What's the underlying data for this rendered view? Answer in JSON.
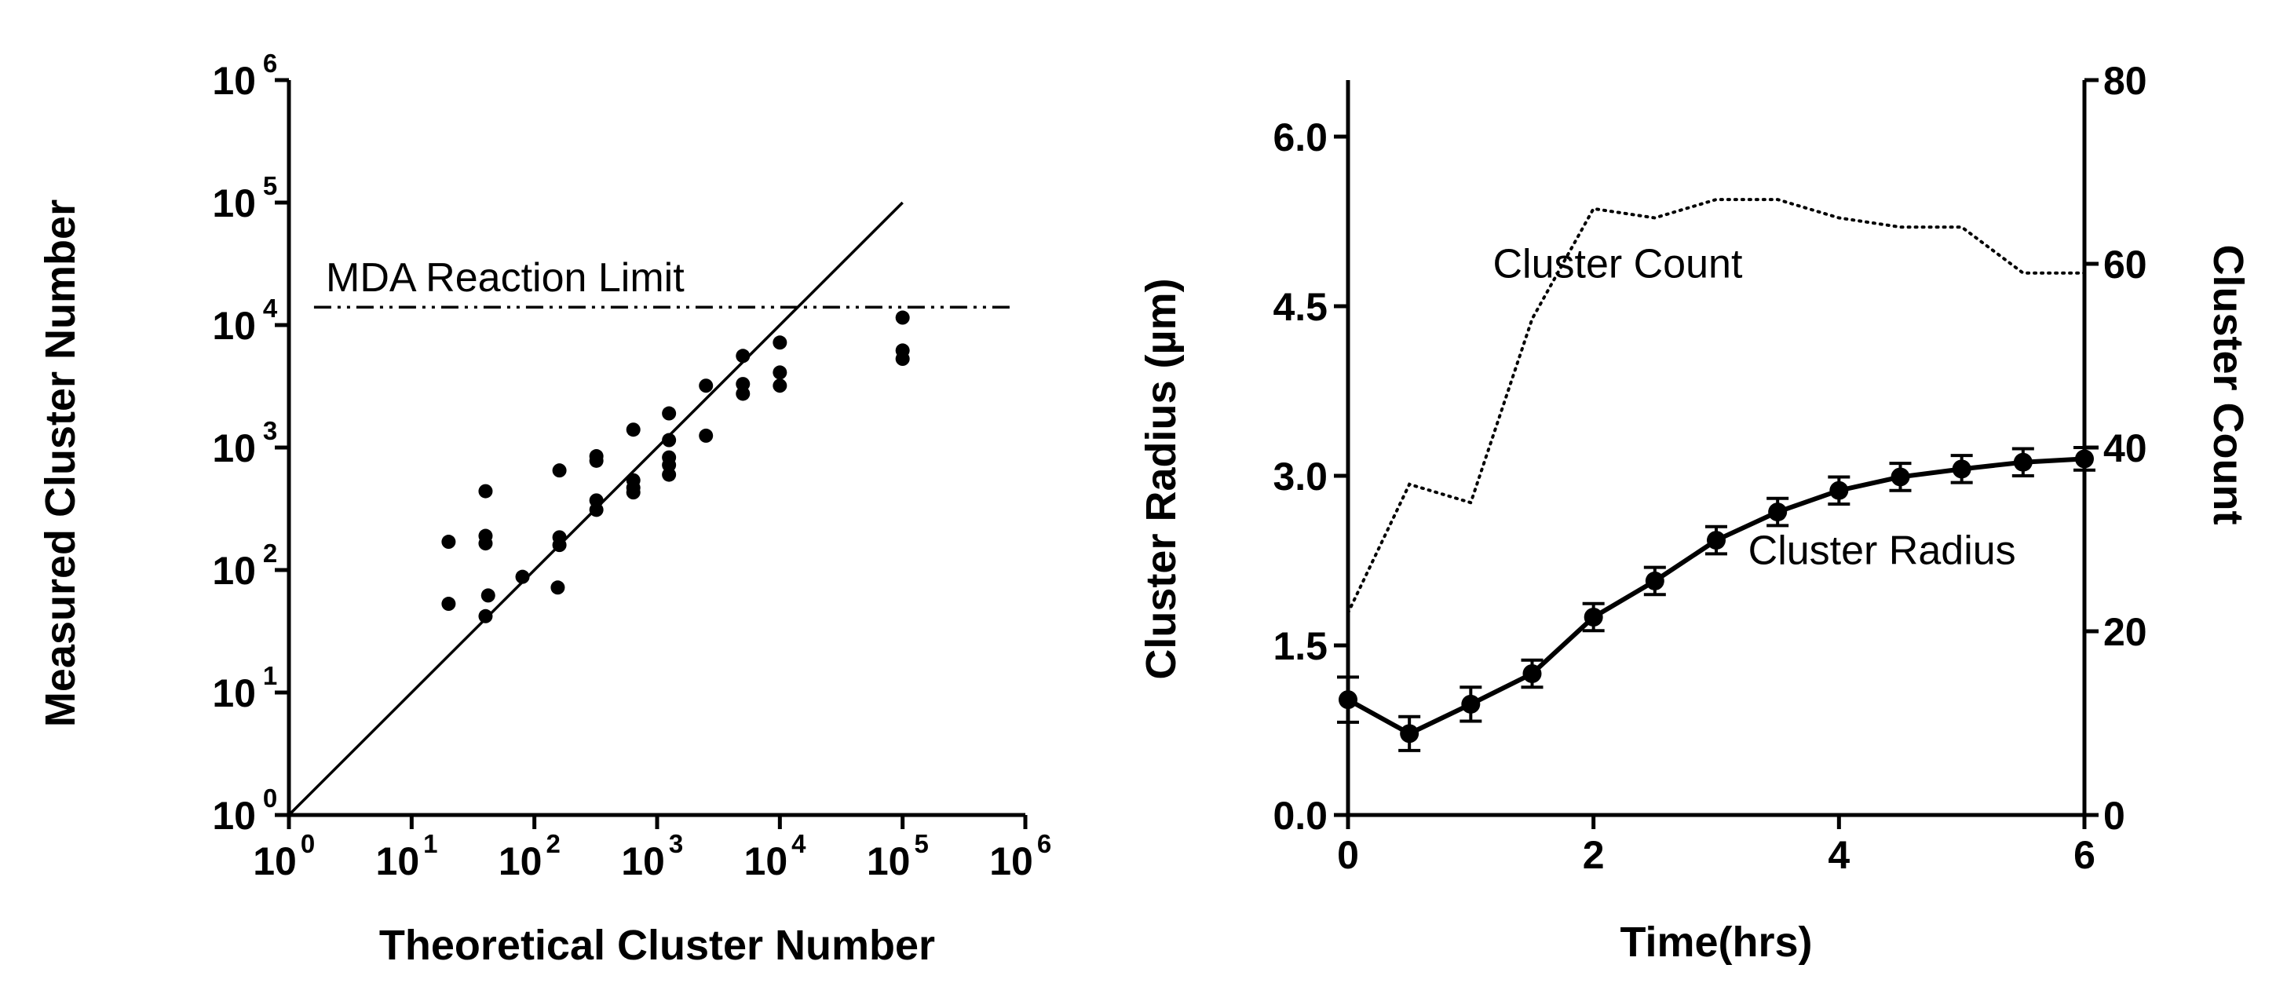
{
  "chart_data": [
    {
      "type": "scatter",
      "title": "",
      "xlabel": "Theoretical Cluster Number",
      "ylabel": "Measured Cluster Number",
      "xscale": "log",
      "yscale": "log",
      "xlim": [
        1,
        1000000
      ],
      "ylim": [
        1,
        1000000
      ],
      "x_ticks": [
        {
          "base": "10",
          "exp": "0"
        },
        {
          "base": "10",
          "exp": "1"
        },
        {
          "base": "10",
          "exp": "2"
        },
        {
          "base": "10",
          "exp": "3"
        },
        {
          "base": "10",
          "exp": "4"
        },
        {
          "base": "10",
          "exp": "5"
        },
        {
          "base": "10",
          "exp": "6"
        }
      ],
      "y_ticks": [
        {
          "base": "10",
          "exp": "0"
        },
        {
          "base": "10",
          "exp": "1"
        },
        {
          "base": "10",
          "exp": "2"
        },
        {
          "base": "10",
          "exp": "3"
        },
        {
          "base": "10",
          "exp": "4"
        },
        {
          "base": "10",
          "exp": "5"
        },
        {
          "base": "10",
          "exp": "6"
        }
      ],
      "points": [
        {
          "x": 20,
          "y": 170
        },
        {
          "x": 20,
          "y": 53
        },
        {
          "x": 40,
          "y": 440
        },
        {
          "x": 40,
          "y": 190
        },
        {
          "x": 40,
          "y": 165
        },
        {
          "x": 42,
          "y": 62
        },
        {
          "x": 40,
          "y": 42
        },
        {
          "x": 80,
          "y": 88
        },
        {
          "x": 160,
          "y": 650
        },
        {
          "x": 160,
          "y": 185
        },
        {
          "x": 160,
          "y": 160
        },
        {
          "x": 155,
          "y": 72
        },
        {
          "x": 320,
          "y": 850
        },
        {
          "x": 320,
          "y": 780
        },
        {
          "x": 320,
          "y": 370
        },
        {
          "x": 320,
          "y": 310
        },
        {
          "x": 640,
          "y": 1400
        },
        {
          "x": 640,
          "y": 540
        },
        {
          "x": 640,
          "y": 470
        },
        {
          "x": 640,
          "y": 430
        },
        {
          "x": 1250,
          "y": 1900
        },
        {
          "x": 1250,
          "y": 1150
        },
        {
          "x": 1250,
          "y": 830
        },
        {
          "x": 1250,
          "y": 720
        },
        {
          "x": 1250,
          "y": 600
        },
        {
          "x": 2500,
          "y": 3200
        },
        {
          "x": 2500,
          "y": 1250
        },
        {
          "x": 5000,
          "y": 5600
        },
        {
          "x": 5000,
          "y": 3300
        },
        {
          "x": 5000,
          "y": 2750
        },
        {
          "x": 10000,
          "y": 7200
        },
        {
          "x": 10000,
          "y": 4100
        },
        {
          "x": 10000,
          "y": 3200
        },
        {
          "x": 100000,
          "y": 11500
        },
        {
          "x": 100000,
          "y": 6200
        },
        {
          "x": 100000,
          "y": 5300
        }
      ],
      "reference_line": {
        "style": "solid",
        "from": [
          1,
          1
        ],
        "to": [
          100000,
          100000
        ]
      },
      "limit_line": {
        "style": "dash-dot-dot",
        "y": 14000,
        "label": "MDA Reaction Limit"
      },
      "grid": false,
      "legend": "none"
    },
    {
      "type": "line",
      "title": "",
      "xlabel": "Time(hrs)",
      "ylabel": "Cluster Radius (µm)",
      "y2label": "Cluster Count",
      "xlim": [
        0,
        6
      ],
      "ylim": [
        0,
        6.5
      ],
      "y2lim": [
        0,
        80
      ],
      "x_ticks": [
        "0",
        "2",
        "4",
        "6"
      ],
      "y_ticks": [
        "0.0",
        "1.5",
        "3.0",
        "4.5",
        "6.0"
      ],
      "y2_ticks": [
        "0",
        "20",
        "40",
        "60",
        "80"
      ],
      "x": [
        0,
        0.5,
        1,
        1.5,
        2,
        2.5,
        3,
        3.5,
        4,
        4.5,
        5,
        5.5,
        6
      ],
      "series": [
        {
          "name": "Cluster Radius",
          "axis": "left",
          "style": "solid-with-markers",
          "values": [
            1.02,
            0.72,
            0.98,
            1.25,
            1.75,
            2.07,
            2.43,
            2.68,
            2.87,
            2.99,
            3.06,
            3.12,
            3.15
          ],
          "errors": [
            0.2,
            0.15,
            0.15,
            0.12,
            0.12,
            0.12,
            0.12,
            0.12,
            0.12,
            0.12,
            0.12,
            0.12,
            0.1
          ]
        },
        {
          "name": "Cluster Count",
          "axis": "right",
          "style": "dotted",
          "x": [
            0,
            0.5,
            1,
            1.5,
            2,
            2.5,
            3,
            3.5,
            4,
            4.5,
            5,
            5.5,
            6
          ],
          "values": [
            22,
            36,
            34,
            54,
            66,
            65,
            67,
            67,
            65,
            64,
            64,
            59,
            59
          ]
        }
      ],
      "grid": false,
      "legend": "none"
    }
  ]
}
